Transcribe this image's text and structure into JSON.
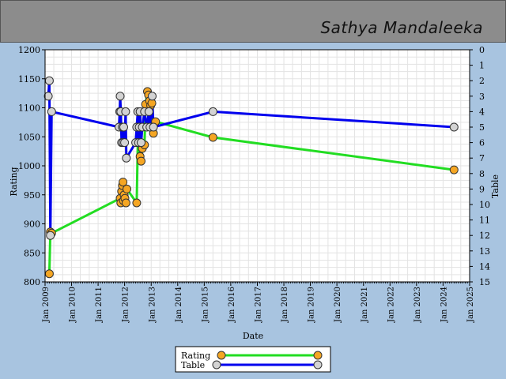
{
  "header": {
    "name": "Sathya Mandaleeka"
  },
  "chart_data": {
    "type": "line",
    "xlabel": "Date",
    "ylabel": "Rating",
    "y2label": "Table",
    "ylim": [
      800,
      1200
    ],
    "y2lim": [
      0,
      15
    ],
    "xlim": [
      "2009-01-01",
      "2025-01-01"
    ],
    "yticks": [
      "800",
      "850",
      "900",
      "950",
      "1000",
      "1050",
      "1100",
      "1150",
      "1200"
    ],
    "y2ticks": [
      "0",
      "1",
      "2",
      "3",
      "4",
      "5",
      "6",
      "7",
      "8",
      "9",
      "10",
      "11",
      "12",
      "13",
      "14",
      "15"
    ],
    "xticks": [
      "Jan 2009",
      "Jan 2010",
      "Jan 2011",
      "Jan 2012",
      "Jan 2013",
      "Jan 2014",
      "Jan 2015",
      "Jan 2016",
      "Jan 2017",
      "Jan 2018",
      "Jan 2019",
      "Jan 2020",
      "Jan 2021",
      "Jan 2022",
      "Jan 2023",
      "Jan 2024",
      "Jan 2025"
    ],
    "grid": true,
    "legend": "bottom-center",
    "series": [
      {
        "name": "Rating",
        "axis": "left",
        "line_color": "#22dd22",
        "marker_color": "#f5a623",
        "points": [
          [
            "2009-03-01",
            814
          ],
          [
            "2009-03-15",
            886
          ],
          [
            "2009-04-01",
            884
          ],
          [
            "2011-11-01",
            944
          ],
          [
            "2011-11-10",
            936
          ],
          [
            "2011-11-20",
            956
          ],
          [
            "2011-12-01",
            966
          ],
          [
            "2011-12-10",
            972
          ],
          [
            "2011-12-15",
            940
          ],
          [
            "2011-12-25",
            950
          ],
          [
            "2012-01-05",
            944
          ],
          [
            "2012-01-20",
            936
          ],
          [
            "2012-02-01",
            960
          ],
          [
            "2012-06-15",
            936
          ],
          [
            "2012-07-01",
            1040
          ],
          [
            "2012-08-01",
            1016
          ],
          [
            "2012-08-15",
            1008
          ],
          [
            "2012-09-01",
            1030
          ],
          [
            "2012-10-01",
            1036
          ],
          [
            "2012-10-15",
            1106
          ],
          [
            "2012-11-10",
            1128
          ],
          [
            "2012-11-25",
            1122
          ],
          [
            "2012-12-10",
            1112
          ],
          [
            "2012-12-25",
            1104
          ],
          [
            "2013-01-10",
            1108
          ],
          [
            "2013-02-01",
            1056
          ],
          [
            "2013-03-01",
            1076
          ],
          [
            "2015-05-01",
            1049
          ],
          [
            "2024-06-01",
            993
          ]
        ]
      },
      {
        "name": "Table",
        "axis": "right",
        "line_color": "#0000ee",
        "marker_color": "#d3d3d3",
        "points": [
          [
            "2009-02-15",
            3
          ],
          [
            "2009-03-01",
            2
          ],
          [
            "2009-03-15",
            12
          ],
          [
            "2009-04-01",
            4
          ],
          [
            "2011-10-15",
            5
          ],
          [
            "2011-10-25",
            4
          ],
          [
            "2011-11-01",
            3
          ],
          [
            "2011-11-10",
            4
          ],
          [
            "2011-11-20",
            6
          ],
          [
            "2011-11-30",
            5
          ],
          [
            "2011-12-10",
            6
          ],
          [
            "2011-12-20",
            5
          ],
          [
            "2012-01-01",
            6
          ],
          [
            "2012-01-15",
            4
          ],
          [
            "2012-01-25",
            7
          ],
          [
            "2012-06-01",
            6
          ],
          [
            "2012-06-15",
            5
          ],
          [
            "2012-07-01",
            4
          ],
          [
            "2012-07-10",
            6
          ],
          [
            "2012-07-20",
            5
          ],
          [
            "2012-08-01",
            4
          ],
          [
            "2012-08-15",
            6
          ],
          [
            "2012-09-01",
            5
          ],
          [
            "2012-10-01",
            4
          ],
          [
            "2012-11-01",
            5
          ],
          [
            "2012-12-01",
            4
          ],
          [
            "2012-12-15",
            5
          ],
          [
            "2013-01-15",
            3
          ],
          [
            "2013-02-01",
            5
          ],
          [
            "2015-05-01",
            4
          ],
          [
            "2024-06-01",
            5
          ]
        ]
      }
    ]
  }
}
